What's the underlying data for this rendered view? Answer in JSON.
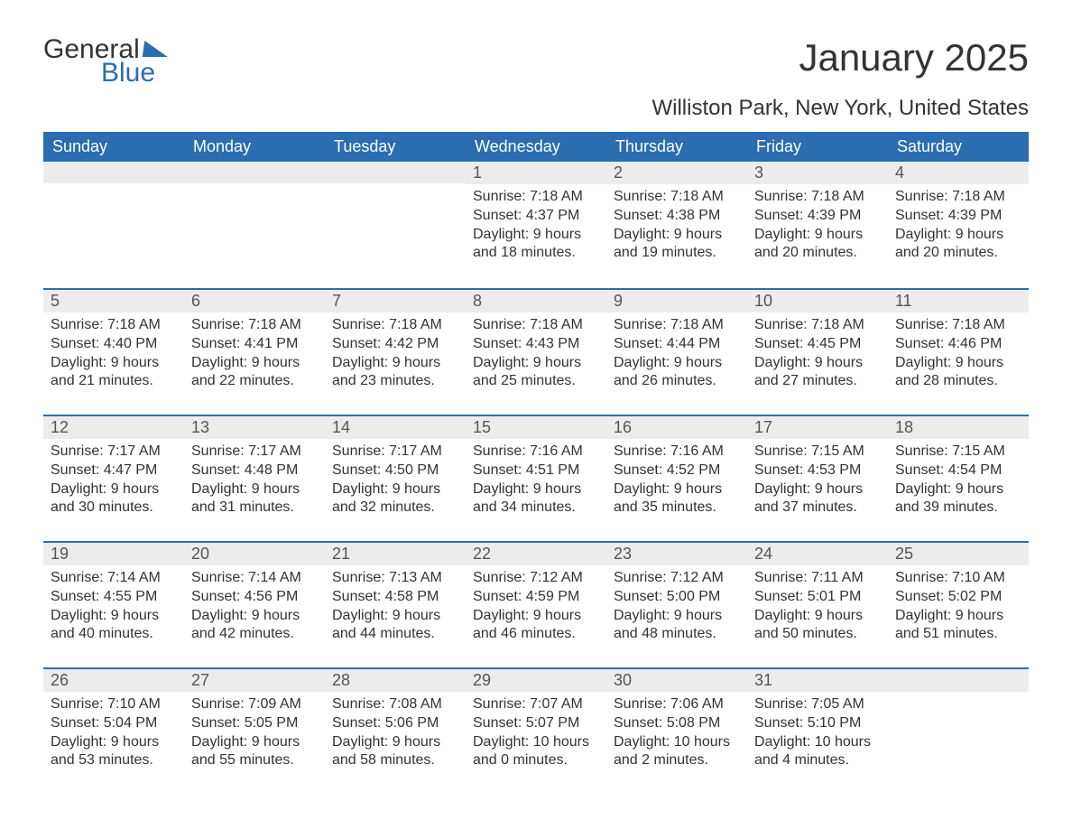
{
  "logo": {
    "text1": "General",
    "text2": "Blue"
  },
  "title": "January 2025",
  "location": "Williston Park, New York, United States",
  "weekdays": [
    "Sunday",
    "Monday",
    "Tuesday",
    "Wednesday",
    "Thursday",
    "Friday",
    "Saturday"
  ],
  "colors": {
    "header_bg": "#2a6db0",
    "header_text": "#ffffff",
    "dayhead_bg": "#ececec",
    "dayhead_border": "#2a6db0",
    "text": "#333333"
  },
  "weeks": [
    [
      null,
      null,
      null,
      {
        "d": "1",
        "sunrise": "Sunrise: 7:18 AM",
        "sunset": "Sunset: 4:37 PM",
        "day1": "Daylight: 9 hours",
        "day2": "and 18 minutes."
      },
      {
        "d": "2",
        "sunrise": "Sunrise: 7:18 AM",
        "sunset": "Sunset: 4:38 PM",
        "day1": "Daylight: 9 hours",
        "day2": "and 19 minutes."
      },
      {
        "d": "3",
        "sunrise": "Sunrise: 7:18 AM",
        "sunset": "Sunset: 4:39 PM",
        "day1": "Daylight: 9 hours",
        "day2": "and 20 minutes."
      },
      {
        "d": "4",
        "sunrise": "Sunrise: 7:18 AM",
        "sunset": "Sunset: 4:39 PM",
        "day1": "Daylight: 9 hours",
        "day2": "and 20 minutes."
      }
    ],
    [
      {
        "d": "5",
        "sunrise": "Sunrise: 7:18 AM",
        "sunset": "Sunset: 4:40 PM",
        "day1": "Daylight: 9 hours",
        "day2": "and 21 minutes."
      },
      {
        "d": "6",
        "sunrise": "Sunrise: 7:18 AM",
        "sunset": "Sunset: 4:41 PM",
        "day1": "Daylight: 9 hours",
        "day2": "and 22 minutes."
      },
      {
        "d": "7",
        "sunrise": "Sunrise: 7:18 AM",
        "sunset": "Sunset: 4:42 PM",
        "day1": "Daylight: 9 hours",
        "day2": "and 23 minutes."
      },
      {
        "d": "8",
        "sunrise": "Sunrise: 7:18 AM",
        "sunset": "Sunset: 4:43 PM",
        "day1": "Daylight: 9 hours",
        "day2": "and 25 minutes."
      },
      {
        "d": "9",
        "sunrise": "Sunrise: 7:18 AM",
        "sunset": "Sunset: 4:44 PM",
        "day1": "Daylight: 9 hours",
        "day2": "and 26 minutes."
      },
      {
        "d": "10",
        "sunrise": "Sunrise: 7:18 AM",
        "sunset": "Sunset: 4:45 PM",
        "day1": "Daylight: 9 hours",
        "day2": "and 27 minutes."
      },
      {
        "d": "11",
        "sunrise": "Sunrise: 7:18 AM",
        "sunset": "Sunset: 4:46 PM",
        "day1": "Daylight: 9 hours",
        "day2": "and 28 minutes."
      }
    ],
    [
      {
        "d": "12",
        "sunrise": "Sunrise: 7:17 AM",
        "sunset": "Sunset: 4:47 PM",
        "day1": "Daylight: 9 hours",
        "day2": "and 30 minutes."
      },
      {
        "d": "13",
        "sunrise": "Sunrise: 7:17 AM",
        "sunset": "Sunset: 4:48 PM",
        "day1": "Daylight: 9 hours",
        "day2": "and 31 minutes."
      },
      {
        "d": "14",
        "sunrise": "Sunrise: 7:17 AM",
        "sunset": "Sunset: 4:50 PM",
        "day1": "Daylight: 9 hours",
        "day2": "and 32 minutes."
      },
      {
        "d": "15",
        "sunrise": "Sunrise: 7:16 AM",
        "sunset": "Sunset: 4:51 PM",
        "day1": "Daylight: 9 hours",
        "day2": "and 34 minutes."
      },
      {
        "d": "16",
        "sunrise": "Sunrise: 7:16 AM",
        "sunset": "Sunset: 4:52 PM",
        "day1": "Daylight: 9 hours",
        "day2": "and 35 minutes."
      },
      {
        "d": "17",
        "sunrise": "Sunrise: 7:15 AM",
        "sunset": "Sunset: 4:53 PM",
        "day1": "Daylight: 9 hours",
        "day2": "and 37 minutes."
      },
      {
        "d": "18",
        "sunrise": "Sunrise: 7:15 AM",
        "sunset": "Sunset: 4:54 PM",
        "day1": "Daylight: 9 hours",
        "day2": "and 39 minutes."
      }
    ],
    [
      {
        "d": "19",
        "sunrise": "Sunrise: 7:14 AM",
        "sunset": "Sunset: 4:55 PM",
        "day1": "Daylight: 9 hours",
        "day2": "and 40 minutes."
      },
      {
        "d": "20",
        "sunrise": "Sunrise: 7:14 AM",
        "sunset": "Sunset: 4:56 PM",
        "day1": "Daylight: 9 hours",
        "day2": "and 42 minutes."
      },
      {
        "d": "21",
        "sunrise": "Sunrise: 7:13 AM",
        "sunset": "Sunset: 4:58 PM",
        "day1": "Daylight: 9 hours",
        "day2": "and 44 minutes."
      },
      {
        "d": "22",
        "sunrise": "Sunrise: 7:12 AM",
        "sunset": "Sunset: 4:59 PM",
        "day1": "Daylight: 9 hours",
        "day2": "and 46 minutes."
      },
      {
        "d": "23",
        "sunrise": "Sunrise: 7:12 AM",
        "sunset": "Sunset: 5:00 PM",
        "day1": "Daylight: 9 hours",
        "day2": "and 48 minutes."
      },
      {
        "d": "24",
        "sunrise": "Sunrise: 7:11 AM",
        "sunset": "Sunset: 5:01 PM",
        "day1": "Daylight: 9 hours",
        "day2": "and 50 minutes."
      },
      {
        "d": "25",
        "sunrise": "Sunrise: 7:10 AM",
        "sunset": "Sunset: 5:02 PM",
        "day1": "Daylight: 9 hours",
        "day2": "and 51 minutes."
      }
    ],
    [
      {
        "d": "26",
        "sunrise": "Sunrise: 7:10 AM",
        "sunset": "Sunset: 5:04 PM",
        "day1": "Daylight: 9 hours",
        "day2": "and 53 minutes."
      },
      {
        "d": "27",
        "sunrise": "Sunrise: 7:09 AM",
        "sunset": "Sunset: 5:05 PM",
        "day1": "Daylight: 9 hours",
        "day2": "and 55 minutes."
      },
      {
        "d": "28",
        "sunrise": "Sunrise: 7:08 AM",
        "sunset": "Sunset: 5:06 PM",
        "day1": "Daylight: 9 hours",
        "day2": "and 58 minutes."
      },
      {
        "d": "29",
        "sunrise": "Sunrise: 7:07 AM",
        "sunset": "Sunset: 5:07 PM",
        "day1": "Daylight: 10 hours",
        "day2": "and 0 minutes."
      },
      {
        "d": "30",
        "sunrise": "Sunrise: 7:06 AM",
        "sunset": "Sunset: 5:08 PM",
        "day1": "Daylight: 10 hours",
        "day2": "and 2 minutes."
      },
      {
        "d": "31",
        "sunrise": "Sunrise: 7:05 AM",
        "sunset": "Sunset: 5:10 PM",
        "day1": "Daylight: 10 hours",
        "day2": "and 4 minutes."
      },
      null
    ]
  ]
}
